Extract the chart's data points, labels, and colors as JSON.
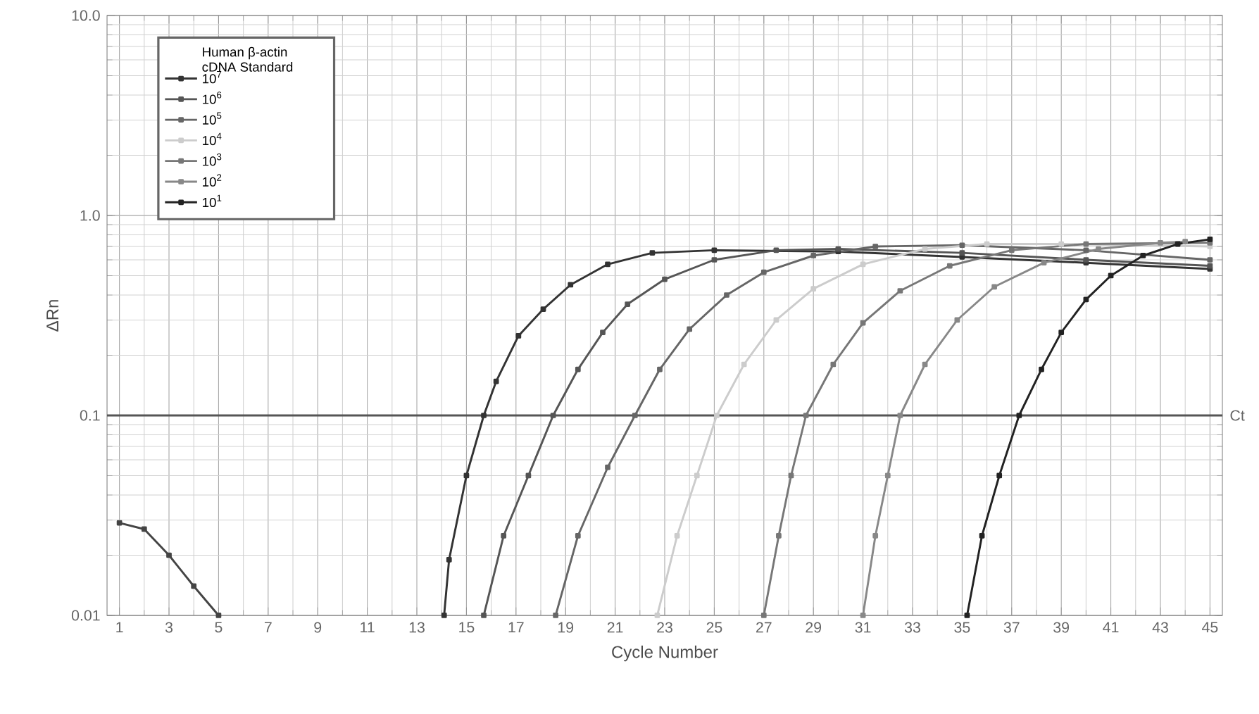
{
  "chart_data": {
    "type": "line",
    "xlabel": "Cycle Number",
    "ylabel": "ΔRn",
    "legend_title": "Human β-actin cDNA Standard",
    "log": "y",
    "grid": true,
    "legend": "top left",
    "marker": "square",
    "line_style": "solid",
    "xlim": [
      0.5,
      45.5
    ],
    "xticks": [
      1,
      3,
      5,
      7,
      9,
      11,
      13,
      15,
      17,
      19,
      21,
      23,
      25,
      27,
      29,
      31,
      33,
      35,
      37,
      39,
      41,
      43,
      45
    ],
    "ylim": [
      0.01,
      10
    ],
    "yticks": [
      {
        "value": 0.01,
        "label": "0.01"
      },
      {
        "value": 0.1,
        "label": "0.1"
      },
      {
        "value": 1,
        "label": "1.0"
      },
      {
        "value": 10,
        "label": "10.0"
      }
    ],
    "ref_lines": [
      {
        "axis": "y",
        "value": 0.1,
        "label": "Ct",
        "color": "#555555"
      }
    ],
    "series": [
      {
        "name": "10$^{7}$",
        "color": "#333333",
        "x": [
          14.1,
          14.3,
          15.0,
          15.7,
          16.2,
          17.1,
          18.1,
          19.2,
          20.7,
          22.5,
          25,
          30,
          35,
          40,
          45
        ],
        "values": [
          0.01,
          0.019,
          0.05,
          0.1,
          0.148,
          0.25,
          0.34,
          0.45,
          0.57,
          0.65,
          0.67,
          0.66,
          0.62,
          0.58,
          0.54
        ]
      },
      {
        "name": "10$^{6}$",
        "color": "#555555",
        "x": [
          15.7,
          16.5,
          17.5,
          18.5,
          19.5,
          20.5,
          21.5,
          23,
          25,
          27.5,
          30,
          35,
          40,
          45
        ],
        "values": [
          0.01,
          0.025,
          0.05,
          0.1,
          0.17,
          0.26,
          0.36,
          0.48,
          0.6,
          0.67,
          0.68,
          0.65,
          0.6,
          0.56
        ]
      },
      {
        "name": "10$^{5}$",
        "color": "#666666",
        "x": [
          18.6,
          19.5,
          20.7,
          21.8,
          22.8,
          24,
          25.5,
          27,
          29,
          31.5,
          35,
          40,
          45
        ],
        "values": [
          0.01,
          0.025,
          0.055,
          0.1,
          0.17,
          0.27,
          0.4,
          0.52,
          0.63,
          0.7,
          0.71,
          0.67,
          0.6
        ]
      },
      {
        "name": "10$^{4}$",
        "color": "#cccccc",
        "x": [
          22.7,
          23.5,
          24.3,
          25.1,
          26.2,
          27.5,
          29,
          31,
          33.5,
          36,
          39,
          45
        ],
        "values": [
          0.01,
          0.025,
          0.05,
          0.1,
          0.18,
          0.3,
          0.43,
          0.57,
          0.68,
          0.72,
          0.72,
          0.7
        ]
      },
      {
        "name": "10$^{3}$",
        "color": "#777777",
        "x": [
          27,
          27.6,
          28.1,
          28.7,
          29.8,
          31,
          32.5,
          34.5,
          37,
          40,
          45
        ],
        "values": [
          0.01,
          0.025,
          0.05,
          0.1,
          0.18,
          0.29,
          0.42,
          0.56,
          0.67,
          0.72,
          0.73
        ]
      },
      {
        "name": "10$^{2}$",
        "color": "#888888",
        "x": [
          31,
          31.5,
          32,
          32.5,
          33.5,
          34.8,
          36.3,
          38.3,
          40.5,
          43,
          44
        ],
        "values": [
          0.01,
          0.025,
          0.05,
          0.1,
          0.18,
          0.3,
          0.44,
          0.58,
          0.68,
          0.73,
          0.74
        ]
      },
      {
        "name": "10$^{1}$",
        "color": "#222222",
        "x": [
          35.2,
          35.8,
          36.5,
          37.3,
          38.2,
          39,
          40,
          41,
          42.3,
          43.7,
          45
        ],
        "values": [
          0.01,
          0.025,
          0.05,
          0.1,
          0.17,
          0.26,
          0.38,
          0.5,
          0.63,
          0.72,
          0.76
        ]
      },
      {
        "color": "#444444",
        "x": [
          1,
          2,
          3,
          4,
          5
        ],
        "values": [
          0.029,
          0.027,
          0.02,
          0.014,
          0.01
        ]
      }
    ]
  }
}
